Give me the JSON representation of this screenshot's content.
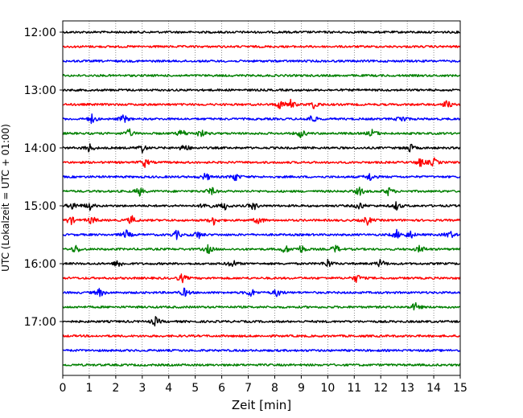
{
  "chart_data": {
    "type": "line",
    "title": "",
    "xlabel": "Zeit  [min]",
    "ylabel": "UTC (Lokalzeit = UTC + 01:00)",
    "xlim": [
      0,
      15
    ],
    "x_ticks": [
      "0",
      "1",
      "2",
      "3",
      "4",
      "5",
      "6",
      "7",
      "8",
      "9",
      "10",
      "11",
      "12",
      "13",
      "14",
      "15"
    ],
    "y_tick_labels": [
      "12:00",
      "13:00",
      "14:00",
      "15:00",
      "16:00",
      "17:00"
    ],
    "y_tick_rows": [
      0,
      4,
      8,
      12,
      16,
      20
    ],
    "grid": "vertical dotted",
    "line_colors": [
      "#000000",
      "#ff0000",
      "#0000ff",
      "#008000"
    ],
    "traces": [
      {
        "start": "12:00",
        "color": "#000000",
        "events": []
      },
      {
        "start": "12:15",
        "color": "#ff0000",
        "events": []
      },
      {
        "start": "12:30",
        "color": "#0000ff",
        "events": []
      },
      {
        "start": "12:45",
        "color": "#008000",
        "events": []
      },
      {
        "start": "13:00",
        "color": "#000000",
        "events": []
      },
      {
        "start": "13:15",
        "color": "#ff0000",
        "events": [
          8.2,
          8.6,
          9.5,
          14.5
        ]
      },
      {
        "start": "13:30",
        "color": "#0000ff",
        "events": [
          1.1,
          2.3,
          9.4,
          12.8
        ]
      },
      {
        "start": "13:45",
        "color": "#008000",
        "events": [
          2.5,
          4.5,
          5.2,
          9.0,
          11.7
        ]
      },
      {
        "start": "14:00",
        "color": "#000000",
        "events": [
          1.0,
          3.0,
          4.6,
          13.1
        ]
      },
      {
        "start": "14:15",
        "color": "#ff0000",
        "events": [
          3.1,
          13.5,
          14.0
        ]
      },
      {
        "start": "14:30",
        "color": "#0000ff",
        "events": [
          5.4,
          6.5,
          11.6
        ]
      },
      {
        "start": "14:45",
        "color": "#008000",
        "events": [
          2.9,
          5.6,
          11.2,
          12.3
        ]
      },
      {
        "start": "15:00",
        "color": "#000000",
        "events": [
          0.4,
          1.0,
          5.4,
          6.1,
          7.2,
          11.2,
          12.6
        ]
      },
      {
        "start": "15:15",
        "color": "#ff0000",
        "events": [
          0.3,
          1.1,
          2.6,
          5.7,
          7.4,
          11.5
        ]
      },
      {
        "start": "15:30",
        "color": "#0000ff",
        "events": [
          2.4,
          4.3,
          5.1,
          12.6,
          13.1,
          14.6
        ]
      },
      {
        "start": "15:45",
        "color": "#008000",
        "events": [
          0.5,
          5.5,
          8.4,
          9.0,
          10.3,
          13.5
        ]
      },
      {
        "start": "16:00",
        "color": "#000000",
        "events": [
          2.1,
          6.4,
          10.0,
          12.0
        ]
      },
      {
        "start": "16:15",
        "color": "#ff0000",
        "events": [
          4.5,
          11.1
        ]
      },
      {
        "start": "16:30",
        "color": "#0000ff",
        "events": [
          1.4,
          4.6,
          7.1,
          8.1
        ]
      },
      {
        "start": "16:45",
        "color": "#008000",
        "events": [
          13.3
        ]
      },
      {
        "start": "17:00",
        "color": "#000000",
        "events": [
          3.5
        ]
      },
      {
        "start": "17:15",
        "color": "#ff0000",
        "events": []
      },
      {
        "start": "17:30",
        "color": "#0000ff",
        "events": []
      },
      {
        "start": "17:45",
        "color": "#008000",
        "events": []
      }
    ]
  }
}
